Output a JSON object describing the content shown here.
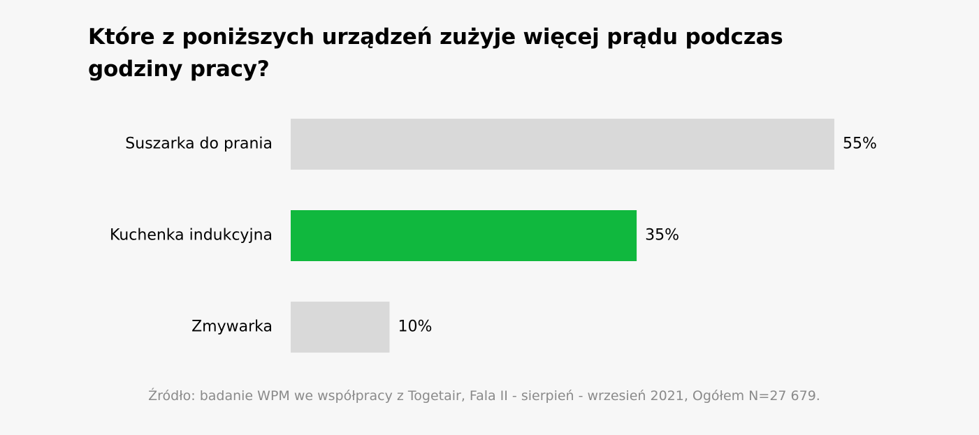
{
  "chart_data": {
    "type": "bar",
    "orientation": "horizontal",
    "title": "Które z poniższych urządzeń zużyje więcej prądu podczas godziny pracy?",
    "categories": [
      "Suszarka do prania",
      "Kuchenka indukcyjna",
      "Zmywarka"
    ],
    "values": [
      55,
      35,
      10
    ],
    "value_labels": [
      "55%",
      "35%",
      "10%"
    ],
    "unit": "%",
    "xlim": [
      0,
      55
    ],
    "highlight_index": 1,
    "colors": {
      "default_bar": "#d9d9d9",
      "highlight_bar": "#10b83e",
      "background": "#f7f7f7",
      "source_text": "#8a8a8a"
    },
    "grid": false,
    "axes_visible": false,
    "source": "Źródło: badanie WPM we współpracy z Togetair, Fala II - sierpień - wrzesień 2021, Ogółem N=27 679."
  }
}
